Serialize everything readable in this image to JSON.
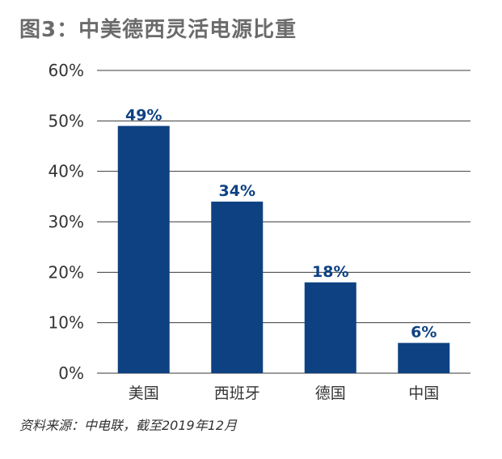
{
  "chart_data": {
    "type": "bar",
    "title": "图3：中美德西灵活电源比重",
    "categories": [
      "美国",
      "西班牙",
      "德国",
      "中国"
    ],
    "values": [
      49,
      34,
      18,
      6
    ],
    "data_labels": [
      "49%",
      "34%",
      "18%",
      "6%"
    ],
    "ylim": [
      0,
      60
    ],
    "yticks": [
      0,
      10,
      20,
      30,
      40,
      50,
      60
    ],
    "ytick_labels": [
      "0%",
      "10%",
      "20%",
      "30%",
      "40%",
      "50%",
      "60%"
    ],
    "xlabel": "",
    "ylabel": "",
    "grid": true,
    "legend": "none",
    "source": "资料来源：中电联，截至2019年12月",
    "colors": {
      "bar": "#0e4182",
      "data_label": "#0e4182",
      "grid": "#3a3a3a",
      "tick_label": "#333333",
      "title": "#6b6b6b"
    }
  }
}
